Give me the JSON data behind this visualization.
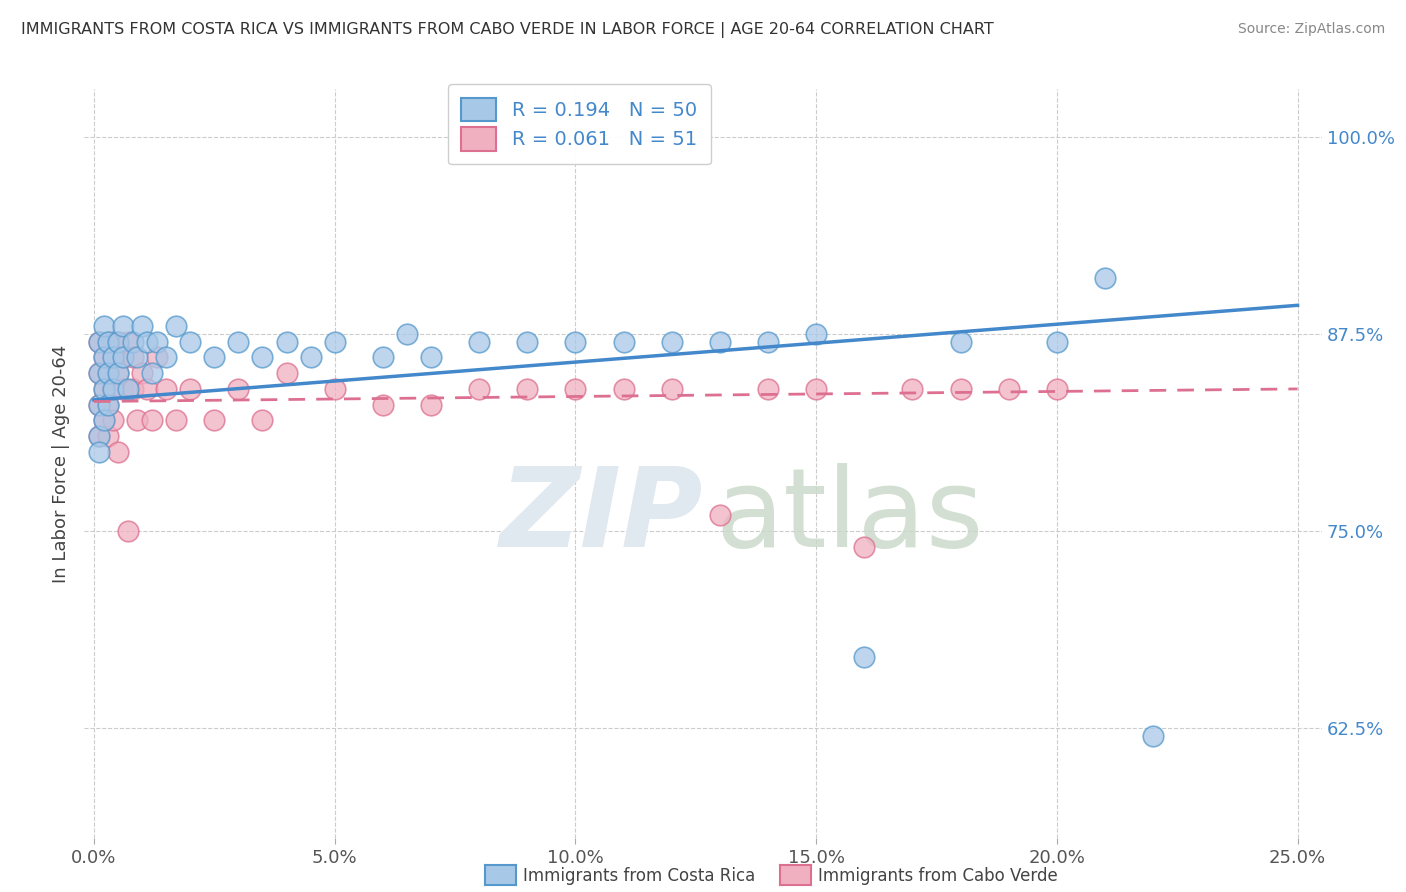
{
  "title": "IMMIGRANTS FROM COSTA RICA VS IMMIGRANTS FROM CABO VERDE IN LABOR FORCE | AGE 20-64 CORRELATION CHART",
  "source": "Source: ZipAtlas.com",
  "ylabel": "In Labor Force | Age 20-64",
  "xlim": [
    -0.002,
    0.255
  ],
  "ylim": [
    0.555,
    1.03
  ],
  "xtick_labels": [
    "0.0%",
    "",
    "",
    "",
    "",
    "5.0%",
    "",
    "",
    "",
    "",
    "10.0%",
    "",
    "",
    "",
    "",
    "15.0%",
    "",
    "",
    "",
    "",
    "20.0%",
    "",
    "",
    "",
    "",
    "25.0%"
  ],
  "xtick_vals": [
    0.0,
    0.01,
    0.02,
    0.03,
    0.04,
    0.05,
    0.06,
    0.07,
    0.08,
    0.09,
    0.1,
    0.11,
    0.12,
    0.13,
    0.14,
    0.15,
    0.16,
    0.17,
    0.18,
    0.19,
    0.2,
    0.21,
    0.22,
    0.23,
    0.24,
    0.25
  ],
  "xtick_major_labels": [
    "0.0%",
    "5.0%",
    "10.0%",
    "15.0%",
    "20.0%",
    "25.0%"
  ],
  "xtick_major_vals": [
    0.0,
    0.05,
    0.1,
    0.15,
    0.2,
    0.25
  ],
  "ytick_labels": [
    "62.5%",
    "75.0%",
    "87.5%",
    "100.0%"
  ],
  "ytick_vals": [
    0.625,
    0.75,
    0.875,
    1.0
  ],
  "blue_color": "#a8c8e8",
  "blue_edge_color": "#5599cc",
  "blue_line_color": "#4488cc",
  "pink_color": "#f0b0c0",
  "pink_edge_color": "#dd7090",
  "pink_line_color": "#dd7090",
  "label_color": "#4488cc",
  "blue_R": 0.194,
  "blue_N": 50,
  "pink_R": 0.061,
  "pink_N": 51,
  "legend_label_blue": "Immigrants from Costa Rica",
  "legend_label_pink": "Immigrants from Cabo Verde",
  "blue_line_x0": 0.0,
  "blue_line_y0": 0.833,
  "blue_line_x1": 0.25,
  "blue_line_y1": 0.893,
  "pink_line_x0": 0.0,
  "pink_line_y0": 0.832,
  "pink_line_x1": 0.25,
  "pink_line_y1": 0.84,
  "blue_scatter_x": [
    0.001,
    0.001,
    0.001,
    0.001,
    0.001,
    0.002,
    0.002,
    0.002,
    0.002,
    0.003,
    0.003,
    0.003,
    0.004,
    0.004,
    0.005,
    0.005,
    0.006,
    0.006,
    0.007,
    0.008,
    0.009,
    0.01,
    0.011,
    0.012,
    0.013,
    0.015,
    0.017,
    0.02,
    0.025,
    0.03,
    0.035,
    0.04,
    0.045,
    0.05,
    0.06,
    0.065,
    0.07,
    0.08,
    0.09,
    0.1,
    0.11,
    0.12,
    0.13,
    0.14,
    0.15,
    0.16,
    0.18,
    0.2,
    0.21,
    0.22
  ],
  "blue_scatter_y": [
    0.87,
    0.85,
    0.83,
    0.81,
    0.8,
    0.86,
    0.84,
    0.82,
    0.88,
    0.87,
    0.85,
    0.83,
    0.86,
    0.84,
    0.87,
    0.85,
    0.88,
    0.86,
    0.84,
    0.87,
    0.86,
    0.88,
    0.87,
    0.85,
    0.87,
    0.86,
    0.88,
    0.87,
    0.86,
    0.87,
    0.86,
    0.87,
    0.86,
    0.87,
    0.86,
    0.875,
    0.86,
    0.87,
    0.87,
    0.87,
    0.87,
    0.87,
    0.87,
    0.87,
    0.875,
    0.67,
    0.87,
    0.87,
    0.91,
    0.62
  ],
  "pink_scatter_x": [
    0.001,
    0.001,
    0.001,
    0.001,
    0.002,
    0.002,
    0.002,
    0.003,
    0.003,
    0.003,
    0.003,
    0.004,
    0.004,
    0.004,
    0.005,
    0.005,
    0.005,
    0.006,
    0.006,
    0.007,
    0.007,
    0.008,
    0.008,
    0.009,
    0.01,
    0.011,
    0.012,
    0.013,
    0.015,
    0.017,
    0.02,
    0.025,
    0.03,
    0.035,
    0.04,
    0.05,
    0.06,
    0.07,
    0.08,
    0.09,
    0.1,
    0.11,
    0.12,
    0.13,
    0.14,
    0.15,
    0.16,
    0.17,
    0.18,
    0.19,
    0.2
  ],
  "pink_scatter_y": [
    0.87,
    0.85,
    0.83,
    0.81,
    0.86,
    0.84,
    0.82,
    0.87,
    0.85,
    0.83,
    0.81,
    0.86,
    0.84,
    0.82,
    0.87,
    0.85,
    0.8,
    0.86,
    0.84,
    0.87,
    0.75,
    0.86,
    0.84,
    0.82,
    0.85,
    0.84,
    0.82,
    0.86,
    0.84,
    0.82,
    0.84,
    0.82,
    0.84,
    0.82,
    0.85,
    0.84,
    0.83,
    0.83,
    0.84,
    0.84,
    0.84,
    0.84,
    0.84,
    0.76,
    0.84,
    0.84,
    0.74,
    0.84,
    0.84,
    0.84,
    0.84
  ]
}
